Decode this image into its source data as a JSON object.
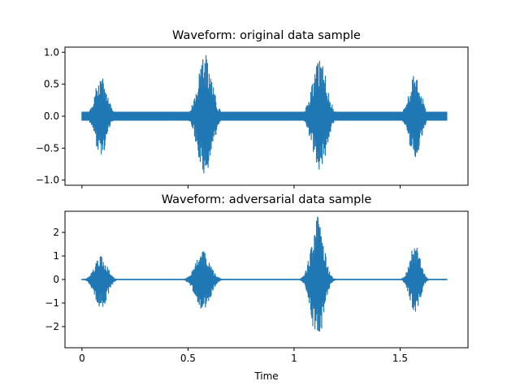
{
  "chart_data": [
    {
      "type": "line",
      "title": "Waveform: original data sample",
      "xlabel": "",
      "ylabel": "",
      "xlim": [
        -0.08,
        1.82
      ],
      "ylim": [
        -1.08,
        1.08
      ],
      "yticks": [
        1.0,
        0.5,
        0.0,
        -0.5,
        -1.0
      ],
      "ytick_labels": [
        "1.0",
        "0.5",
        "0.0",
        "−0.5",
        "−1.0"
      ],
      "xticks": [
        0,
        0.5,
        1,
        1.5
      ],
      "xtick_labels": [],
      "grid": false,
      "legend": "none",
      "color": "#1f77b4",
      "duration": 1.72,
      "noise_floor": 0.07,
      "bursts": [
        {
          "center": 0.09,
          "width": 0.06,
          "max": 0.62,
          "min": -0.62
        },
        {
          "center": 0.58,
          "width": 0.07,
          "max": 0.97,
          "min": -0.97
        },
        {
          "center": 1.12,
          "width": 0.07,
          "max": 0.9,
          "min": -0.9
        },
        {
          "center": 1.57,
          "width": 0.06,
          "max": 0.65,
          "min": -0.65
        }
      ]
    },
    {
      "type": "line",
      "title": "Waveform: adversarial data sample",
      "xlabel": "Time",
      "ylabel": "",
      "xlim": [
        -0.08,
        1.82
      ],
      "ylim": [
        -2.9,
        2.9
      ],
      "yticks": [
        2,
        1,
        0,
        -1,
        -2
      ],
      "ytick_labels": [
        "2",
        "1",
        "0",
        "−1",
        "−2"
      ],
      "xticks": [
        0,
        0.5,
        1,
        1.5
      ],
      "xtick_labels": [
        "0",
        "0.5",
        "1",
        "1.5"
      ],
      "grid": false,
      "legend": "none",
      "color": "#1f77b4",
      "duration": 1.72,
      "noise_floor": 0.03,
      "bursts": [
        {
          "center": 0.09,
          "width": 0.06,
          "max": 1.0,
          "min": -1.3
        },
        {
          "center": 0.57,
          "width": 0.07,
          "max": 1.2,
          "min": -1.4
        },
        {
          "center": 1.11,
          "width": 0.06,
          "max": 2.7,
          "min": -2.7
        },
        {
          "center": 1.57,
          "width": 0.05,
          "max": 1.5,
          "min": -1.5
        }
      ]
    }
  ]
}
